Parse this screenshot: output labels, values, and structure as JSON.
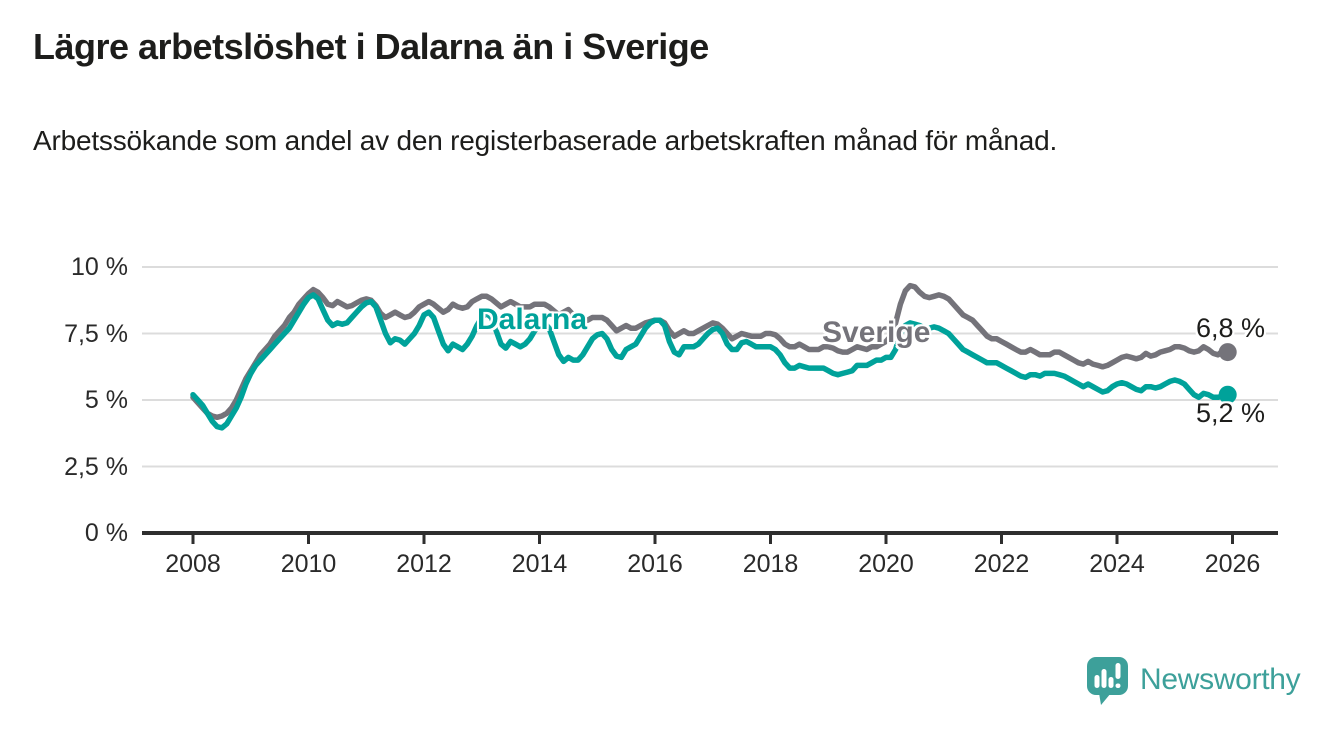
{
  "header": {
    "title": "Lägre arbetslöshet i Dalarna än i Sverige",
    "subtitle": "Arbetssökande som andel av den registerbaserade arbetskraften månad för månad."
  },
  "logo": {
    "text": "Newsworthy",
    "color": "#3da09a"
  },
  "colors": {
    "dalarna": "#00a29a",
    "sverige": "#74737a",
    "axis": "#2e2e2e",
    "grid": "#dcdcdc",
    "text": "#1d1d1b"
  },
  "chart_data": {
    "type": "line",
    "title": "Lägre arbetslöshet i Dalarna än i Sverige",
    "subtitle": "Arbetssökande som andel av den registerbaserade arbetskraften månad för månad.",
    "x_unit": "month",
    "x_start": "2008-01",
    "x_end": "2025-12",
    "ylim": [
      0,
      10
    ],
    "grid": true,
    "y_ticks": [
      {
        "label": "10 %",
        "value": 10
      },
      {
        "label": "7,5 %",
        "value": 7.5
      },
      {
        "label": "5 %",
        "value": 5
      },
      {
        "label": "2,5 %",
        "value": 2.5
      },
      {
        "label": "0 %",
        "value": 0
      }
    ],
    "x_ticks": [
      {
        "label": "2008",
        "year": 2008
      },
      {
        "label": "2010",
        "year": 2010
      },
      {
        "label": "2012",
        "year": 2012
      },
      {
        "label": "2014",
        "year": 2014
      },
      {
        "label": "2016",
        "year": 2016
      },
      {
        "label": "2018",
        "year": 2018
      },
      {
        "label": "2020",
        "year": 2020
      },
      {
        "label": "2022",
        "year": 2022
      },
      {
        "label": "2024",
        "year": 2024
      },
      {
        "label": "2026",
        "year": 2026
      }
    ],
    "series": [
      {
        "name": "Sverige",
        "color": "#74737a",
        "end_label": "6,8 %",
        "end_value": 6.8,
        "values": [
          5.1,
          4.9,
          4.7,
          4.5,
          4.4,
          4.35,
          4.4,
          4.5,
          4.7,
          5.0,
          5.4,
          5.8,
          6.1,
          6.4,
          6.7,
          6.9,
          7.1,
          7.4,
          7.6,
          7.8,
          8.1,
          8.3,
          8.6,
          8.8,
          9.0,
          9.15,
          9.05,
          8.85,
          8.6,
          8.55,
          8.7,
          8.6,
          8.5,
          8.55,
          8.65,
          8.75,
          8.8,
          8.75,
          8.55,
          8.25,
          8.1,
          8.2,
          8.3,
          8.2,
          8.1,
          8.15,
          8.3,
          8.5,
          8.6,
          8.7,
          8.6,
          8.45,
          8.3,
          8.4,
          8.6,
          8.5,
          8.45,
          8.5,
          8.7,
          8.8,
          8.9,
          8.9,
          8.8,
          8.65,
          8.5,
          8.6,
          8.7,
          8.6,
          8.5,
          8.5,
          8.5,
          8.6,
          8.6,
          8.6,
          8.5,
          8.35,
          8.2,
          8.3,
          8.4,
          8.2,
          8.1,
          8.0,
          8.0,
          8.1,
          8.1,
          8.1,
          8.0,
          7.8,
          7.6,
          7.7,
          7.8,
          7.7,
          7.7,
          7.8,
          7.9,
          7.95,
          8.0,
          8.0,
          7.9,
          7.6,
          7.4,
          7.5,
          7.6,
          7.5,
          7.5,
          7.6,
          7.7,
          7.8,
          7.9,
          7.85,
          7.7,
          7.5,
          7.3,
          7.4,
          7.5,
          7.45,
          7.4,
          7.4,
          7.4,
          7.5,
          7.5,
          7.45,
          7.3,
          7.1,
          7.0,
          7.0,
          7.1,
          7.0,
          6.9,
          6.9,
          6.9,
          7.0,
          7.0,
          6.95,
          6.85,
          6.8,
          6.8,
          6.9,
          7.0,
          6.95,
          6.9,
          7.0,
          7.0,
          7.1,
          7.2,
          7.4,
          7.9,
          8.6,
          9.1,
          9.3,
          9.25,
          9.05,
          8.9,
          8.85,
          8.9,
          8.95,
          8.9,
          8.8,
          8.6,
          8.4,
          8.2,
          8.1,
          8.0,
          7.8,
          7.6,
          7.4,
          7.3,
          7.3,
          7.2,
          7.1,
          7.0,
          6.9,
          6.8,
          6.8,
          6.9,
          6.8,
          6.7,
          6.7,
          6.7,
          6.8,
          6.8,
          6.7,
          6.6,
          6.5,
          6.4,
          6.35,
          6.45,
          6.35,
          6.3,
          6.25,
          6.3,
          6.4,
          6.5,
          6.6,
          6.65,
          6.6,
          6.55,
          6.6,
          6.75,
          6.65,
          6.7,
          6.8,
          6.85,
          6.9,
          7.0,
          7.0,
          6.95,
          6.85,
          6.8,
          6.85,
          7.0,
          6.9,
          6.75,
          6.7,
          6.85,
          6.8
        ]
      },
      {
        "name": "Dalarna",
        "color": "#00a29a",
        "end_label": "5,2 %",
        "end_value": 5.2,
        "values": [
          5.2,
          5.0,
          4.8,
          4.5,
          4.2,
          4.0,
          3.95,
          4.1,
          4.4,
          4.7,
          5.1,
          5.6,
          6.0,
          6.3,
          6.5,
          6.7,
          6.9,
          7.1,
          7.3,
          7.5,
          7.7,
          8.0,
          8.3,
          8.6,
          8.85,
          8.95,
          8.8,
          8.4,
          8.0,
          7.8,
          7.9,
          7.85,
          7.9,
          8.1,
          8.3,
          8.5,
          8.65,
          8.7,
          8.5,
          8.0,
          7.5,
          7.15,
          7.3,
          7.25,
          7.1,
          7.3,
          7.5,
          7.8,
          8.2,
          8.3,
          8.1,
          7.6,
          7.1,
          6.85,
          7.1,
          7.0,
          6.9,
          7.1,
          7.4,
          7.8,
          8.1,
          8.25,
          8.1,
          7.6,
          7.1,
          6.95,
          7.2,
          7.1,
          7.0,
          7.1,
          7.3,
          7.6,
          7.8,
          7.9,
          7.7,
          7.2,
          6.7,
          6.45,
          6.6,
          6.5,
          6.5,
          6.7,
          7.0,
          7.3,
          7.45,
          7.5,
          7.3,
          6.9,
          6.65,
          6.6,
          6.9,
          7.0,
          7.1,
          7.4,
          7.7,
          7.9,
          8.0,
          8.0,
          7.8,
          7.2,
          6.8,
          6.7,
          7.0,
          7.0,
          7.0,
          7.1,
          7.3,
          7.5,
          7.65,
          7.7,
          7.5,
          7.1,
          6.9,
          6.9,
          7.15,
          7.2,
          7.1,
          7.0,
          7.0,
          7.0,
          7.0,
          6.9,
          6.7,
          6.4,
          6.2,
          6.2,
          6.3,
          6.25,
          6.2,
          6.2,
          6.2,
          6.2,
          6.1,
          6.0,
          5.95,
          6.0,
          6.05,
          6.1,
          6.3,
          6.3,
          6.3,
          6.4,
          6.5,
          6.5,
          6.6,
          6.6,
          6.9,
          7.5,
          7.8,
          7.9,
          7.85,
          7.8,
          7.7,
          7.7,
          7.75,
          7.7,
          7.6,
          7.5,
          7.3,
          7.1,
          6.9,
          6.8,
          6.7,
          6.6,
          6.5,
          6.4,
          6.4,
          6.4,
          6.3,
          6.2,
          6.1,
          6.0,
          5.9,
          5.85,
          5.95,
          5.95,
          5.9,
          6.0,
          6.0,
          6.0,
          5.95,
          5.9,
          5.8,
          5.7,
          5.6,
          5.5,
          5.6,
          5.5,
          5.4,
          5.3,
          5.35,
          5.5,
          5.6,
          5.65,
          5.6,
          5.5,
          5.4,
          5.35,
          5.5,
          5.5,
          5.45,
          5.5,
          5.6,
          5.7,
          5.75,
          5.7,
          5.6,
          5.4,
          5.2,
          5.1,
          5.25,
          5.2,
          5.1,
          5.1,
          5.15,
          5.2
        ]
      }
    ]
  }
}
